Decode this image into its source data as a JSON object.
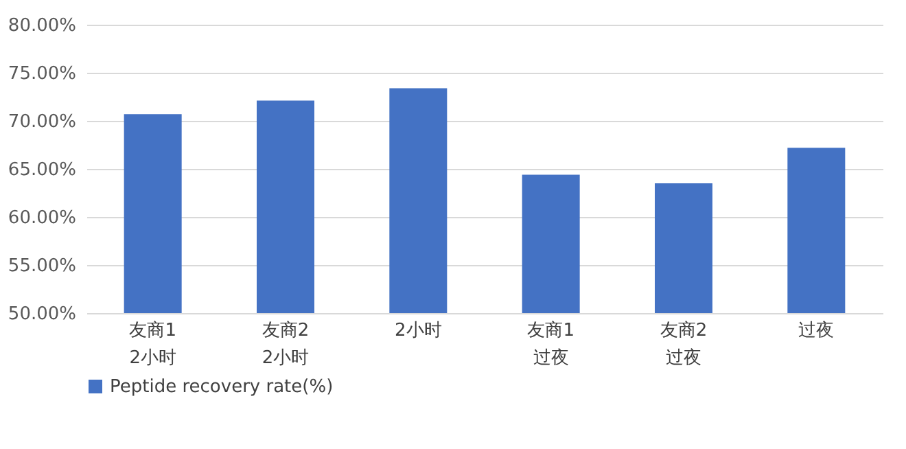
{
  "chart_data": {
    "type": "bar",
    "categories": [
      "友商1\n2小时",
      "友商2\n2小时",
      "2小时",
      "友商1\n过夜",
      "友商2\n过夜",
      "过夜"
    ],
    "series": [
      {
        "name": "Peptide recovery rate(%)",
        "color": "#4472c4",
        "values": [
          70.7,
          72.1,
          73.4,
          64.4,
          63.5,
          67.2
        ]
      }
    ],
    "ylim": [
      50,
      80
    ],
    "yticks": [
      {
        "value": 50,
        "label": "50.00%"
      },
      {
        "value": 55,
        "label": "55.00%"
      },
      {
        "value": 60,
        "label": "60.00%"
      },
      {
        "value": 65,
        "label": "65.00%"
      },
      {
        "value": 70,
        "label": "70.00%"
      },
      {
        "value": 75,
        "label": "75.00%"
      },
      {
        "value": 80,
        "label": "80.00%"
      }
    ],
    "grid": "y",
    "legend": "bottom"
  }
}
